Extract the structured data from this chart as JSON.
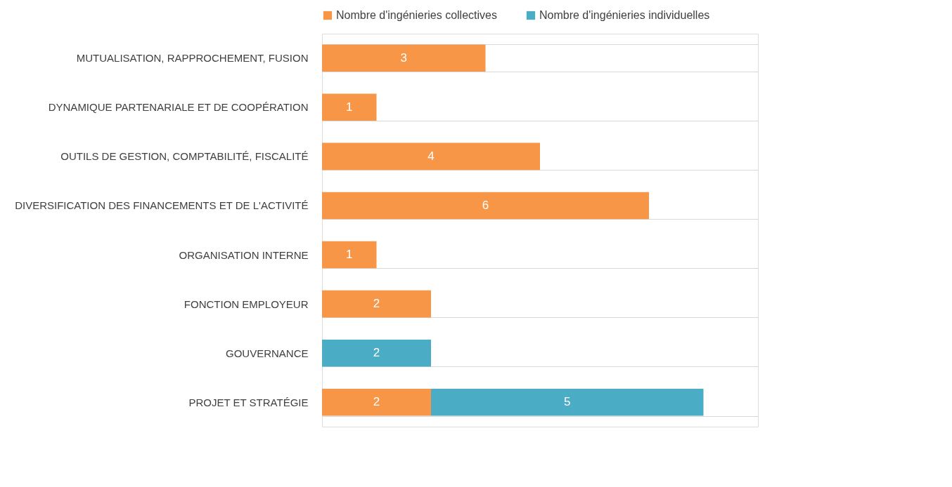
{
  "chart_data": {
    "type": "bar",
    "orientation": "horizontal",
    "stacked": true,
    "data_labels": true,
    "grid": "y",
    "legend": "top",
    "categories": [
      "MUTUALISATION, RAPPROCHEMENT, FUSION",
      "DYNAMIQUE PARTENARIALE ET DE COOPÉRATION",
      "OUTILS DE GESTION, COMPTABILITÉ, FISCALITÉ",
      "DIVERSIFICATION DES FINANCEMENTS ET DE L'ACTIVITÉ",
      "ORGANISATION INTERNE",
      "FONCTION EMPLOYEUR",
      "GOUVERNANCE",
      "PROJET ET STRATÉGIE"
    ],
    "series": [
      {
        "name": "Nombre d'ingénieries collectives",
        "color": "#f79646",
        "values": [
          3,
          1,
          4,
          6,
          1,
          2,
          null,
          2
        ]
      },
      {
        "name": "Nombre d'ingénieries individuelles",
        "color": "#4bacc6",
        "values": [
          null,
          null,
          null,
          null,
          null,
          null,
          2,
          5
        ]
      }
    ]
  }
}
